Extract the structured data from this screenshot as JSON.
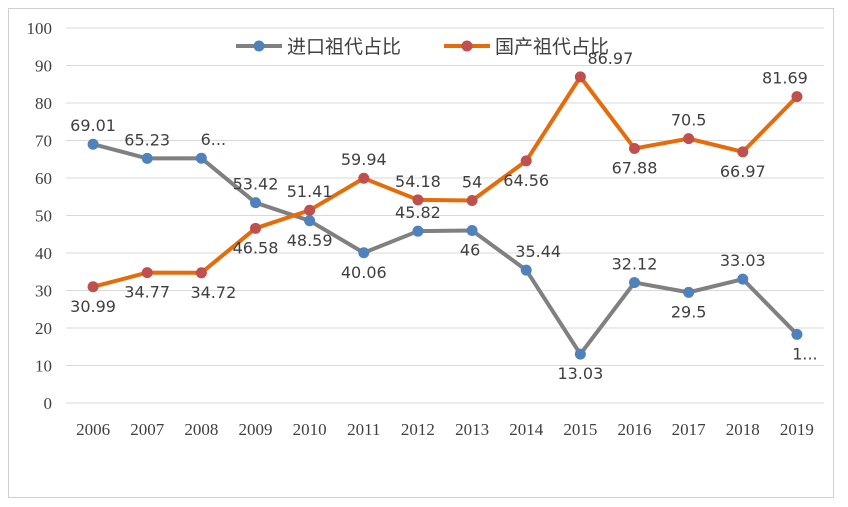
{
  "chart_data": {
    "type": "line",
    "title": "",
    "xlabel": "",
    "ylabel": "",
    "ylim": [
      0,
      100
    ],
    "yticks": [
      "0",
      "10",
      "20",
      "30",
      "40",
      "50",
      "60",
      "70",
      "80",
      "90",
      "100"
    ],
    "categories": [
      "2006",
      "2007",
      "2008",
      "2009",
      "2010",
      "2011",
      "2012",
      "2013",
      "2014",
      "2015",
      "2016",
      "2017",
      "2018",
      "2019"
    ],
    "grid": true,
    "legend_position": "top",
    "series": [
      {
        "name": "进口祖代占比",
        "color": "#808080",
        "marker_color": "#4f81bd",
        "values": [
          69.01,
          65.23,
          65.28,
          53.42,
          48.59,
          40.06,
          45.82,
          46,
          35.44,
          13.03,
          32.12,
          29.5,
          33.03,
          18.31
        ],
        "labels": [
          "69.01",
          "65.23",
          "6...",
          "53.42",
          "48.59",
          "40.06",
          "45.82",
          "46",
          "35.44",
          "13.03",
          "32.12",
          "29.5",
          "33.03",
          "1..."
        ]
      },
      {
        "name": "国产祖代占比",
        "color": "#e46c0a",
        "marker_color": "#c0504d",
        "values": [
          30.99,
          34.77,
          34.72,
          46.58,
          51.41,
          59.94,
          54.18,
          54,
          64.56,
          86.97,
          67.88,
          70.5,
          66.97,
          81.69
        ],
        "labels": [
          "30.99",
          "34.77",
          "34.72",
          "46.58",
          "51.41",
          "59.94",
          "54.18",
          "54",
          "64.56",
          "86.97",
          "67.88",
          "70.5",
          "66.97",
          "81.69"
        ]
      }
    ]
  }
}
